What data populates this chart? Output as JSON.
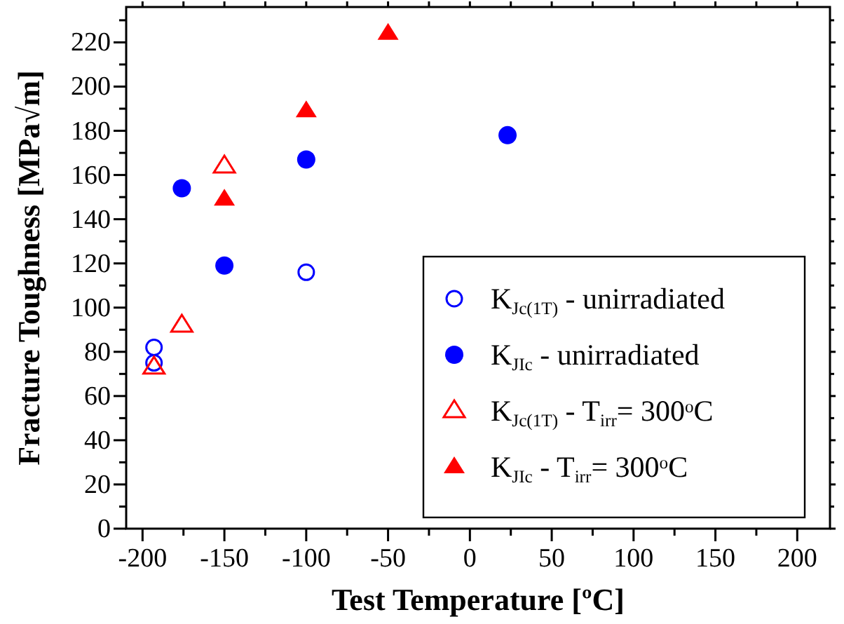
{
  "chart_data": {
    "type": "scatter",
    "xlabel": "Test Temperature [ºC]",
    "ylabel": "Fracture Toughness [MPa√m]",
    "xlim": [
      -210,
      220
    ],
    "ylim": [
      0,
      236
    ],
    "xticks": [
      -200,
      {
        "value": -175,
        "label": null
      },
      -150,
      {
        "value": -125,
        "label": null
      },
      -100,
      {
        "value": -75,
        "label": null
      },
      -50,
      {
        "value": -25,
        "label": null
      },
      0,
      {
        "value": 25,
        "label": null
      },
      50,
      {
        "value": 75,
        "label": null
      },
      100,
      {
        "value": 125,
        "label": null
      },
      150,
      {
        "value": 175,
        "label": null
      },
      200
    ],
    "yticks": [
      0,
      {
        "value": 10,
        "label": null
      },
      20,
      {
        "value": 30,
        "label": null
      },
      40,
      {
        "value": 50,
        "label": null
      },
      60,
      {
        "value": 70,
        "label": null
      },
      80,
      {
        "value": 90,
        "label": null
      },
      100,
      {
        "value": 110,
        "label": null
      },
      120,
      {
        "value": 130,
        "label": null
      },
      140,
      {
        "value": 150,
        "label": null
      },
      160,
      {
        "value": 170,
        "label": null
      },
      180,
      {
        "value": 190,
        "label": null
      },
      200,
      {
        "value": 210,
        "label": null
      },
      220,
      {
        "value": 230,
        "label": null
      }
    ],
    "grid": false,
    "legend": "bottom right",
    "series": [
      {
        "name": "K$_{Jc(1T)}$ - unirradiated",
        "color": "#0000ff",
        "marker": "circle-open",
        "x": [
          -193,
          -193,
          -100
        ],
        "values": [
          82,
          75,
          116
        ]
      },
      {
        "name": "K$_{JIc}$ - unirradiated",
        "color": "#0000ff",
        "marker": "circle",
        "x": [
          -176,
          -150,
          -100,
          23
        ],
        "values": [
          154,
          119,
          167,
          178
        ]
      },
      {
        "name": "K$_{Jc(1T)}$ - T$_{irr}$= 300$^{o}$C",
        "color": "#ff0000",
        "marker": "triangle-open",
        "x": [
          -193,
          -176,
          -150
        ],
        "values": [
          73,
          92,
          164
        ]
      },
      {
        "name": "K$_{JIc}$ - T$_{irr}$= 300$^{o}$C",
        "color": "#ff0000",
        "marker": "triangle",
        "x": [
          -150,
          -100,
          -50
        ],
        "values": [
          149,
          189,
          224
        ]
      }
    ]
  }
}
